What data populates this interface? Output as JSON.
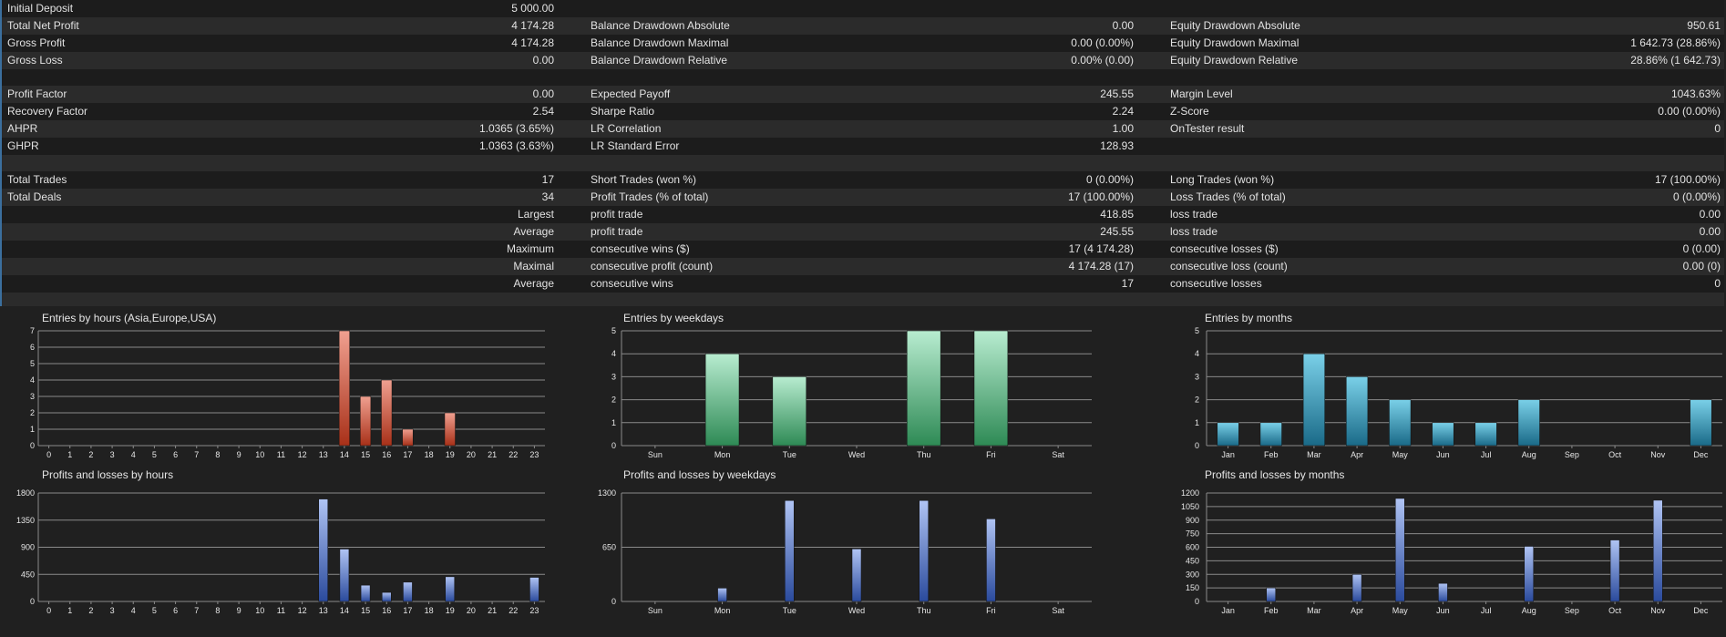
{
  "stats_rows": [
    {
      "a_label": "Initial Deposit",
      "a_value": "5 000.00",
      "b_label": "",
      "b_value": "",
      "c_label": "",
      "c_value": "",
      "a_right": false
    },
    {
      "a_label": "Total Net Profit",
      "a_value": "4 174.28",
      "b_label": "Balance Drawdown Absolute",
      "b_value": "0.00",
      "c_label": "Equity Drawdown Absolute",
      "c_value": "950.61",
      "a_right": false
    },
    {
      "a_label": "Gross Profit",
      "a_value": "4 174.28",
      "b_label": "Balance Drawdown Maximal",
      "b_value": "0.00 (0.00%)",
      "c_label": "Equity Drawdown Maximal",
      "c_value": "1 642.73 (28.86%)",
      "a_right": false
    },
    {
      "a_label": "Gross Loss",
      "a_value": "0.00",
      "b_label": "Balance Drawdown Relative",
      "b_value": "0.00% (0.00)",
      "c_label": "Equity Drawdown Relative",
      "c_value": "28.86% (1 642.73)",
      "a_right": false
    },
    {
      "blank": true
    },
    {
      "a_label": "Profit Factor",
      "a_value": "0.00",
      "b_label": "Expected Payoff",
      "b_value": "245.55",
      "c_label": "Margin Level",
      "c_value": "1043.63%",
      "a_right": false
    },
    {
      "a_label": "Recovery Factor",
      "a_value": "2.54",
      "b_label": "Sharpe Ratio",
      "b_value": "2.24",
      "c_label": "Z-Score",
      "c_value": "0.00 (0.00%)",
      "a_right": false
    },
    {
      "a_label": "AHPR",
      "a_value": "1.0365 (3.65%)",
      "b_label": "LR Correlation",
      "b_value": "1.00",
      "c_label": "OnTester result",
      "c_value": "0",
      "a_right": false
    },
    {
      "a_label": "GHPR",
      "a_value": "1.0363 (3.63%)",
      "b_label": "LR Standard Error",
      "b_value": "128.93",
      "c_label": "",
      "c_value": "",
      "a_right": false
    },
    {
      "blank": true
    },
    {
      "a_label": "Total Trades",
      "a_value": "17",
      "b_label": "Short Trades (won %)",
      "b_value": "0 (0.00%)",
      "c_label": "Long Trades (won %)",
      "c_value": "17 (100.00%)",
      "a_right": false
    },
    {
      "a_label": "Total Deals",
      "a_value": "34",
      "b_label": "Profit Trades (% of total)",
      "b_value": "17 (100.00%)",
      "c_label": "Loss Trades (% of total)",
      "c_value": "0 (0.00%)",
      "a_right": false
    },
    {
      "a_label": "Largest",
      "a_value": "",
      "b_label": "profit trade",
      "b_value": "418.85",
      "c_label": "loss trade",
      "c_value": "0.00",
      "a_right": true
    },
    {
      "a_label": "Average",
      "a_value": "",
      "b_label": "profit trade",
      "b_value": "245.55",
      "c_label": "loss trade",
      "c_value": "0.00",
      "a_right": true
    },
    {
      "a_label": "Maximum",
      "a_value": "",
      "b_label": "consecutive wins ($)",
      "b_value": "17 (4 174.28)",
      "c_label": "consecutive losses ($)",
      "c_value": "0 (0.00)",
      "a_right": true
    },
    {
      "a_label": "Maximal",
      "a_value": "",
      "b_label": "consecutive profit (count)",
      "b_value": "4 174.28 (17)",
      "c_label": "consecutive loss (count)",
      "c_value": "0.00 (0)",
      "a_right": true
    },
    {
      "a_label": "Average",
      "a_value": "",
      "b_label": "consecutive wins",
      "b_value": "17",
      "c_label": "consecutive losses",
      "c_value": "0",
      "a_right": true
    },
    {
      "blank": true
    }
  ],
  "colors": {
    "background": "#202020",
    "grid": "#8a8a8a",
    "hours_bar_top": "#f0a090",
    "hours_bar_bottom": "#a83018",
    "weekday_bar_top": "#b8ecd0",
    "weekday_bar_bottom": "#2e8a55",
    "month_bar_top": "#7ad0e8",
    "month_bar_bottom": "#1a6a88",
    "pl_bar_top": "#b0c4f4",
    "pl_bar_bottom": "#2a4a9c"
  },
  "chart_data": [
    {
      "id": "entries-hours",
      "type": "bar",
      "title": "Entries by hours (Asia,Europe,USA)",
      "categories": [
        "0",
        "1",
        "2",
        "3",
        "4",
        "5",
        "6",
        "7",
        "8",
        "9",
        "10",
        "11",
        "12",
        "13",
        "14",
        "15",
        "16",
        "17",
        "18",
        "19",
        "20",
        "21",
        "22",
        "23"
      ],
      "values": [
        0,
        0,
        0,
        0,
        0,
        0,
        0,
        0,
        0,
        0,
        0,
        0,
        0,
        0,
        7,
        3,
        4,
        1,
        0,
        2,
        0,
        0,
        0,
        0
      ],
      "ylim": [
        0,
        7
      ],
      "yticks": [
        "0",
        "1",
        "2",
        "3",
        "4",
        "5",
        "6",
        "7"
      ],
      "color": "hours"
    },
    {
      "id": "entries-weekdays",
      "type": "bar",
      "title": "Entries by weekdays",
      "categories": [
        "Sun",
        "Mon",
        "Tue",
        "Wed",
        "Thu",
        "Fri",
        "Sat"
      ],
      "values": [
        0,
        4,
        3,
        0,
        5,
        5,
        0
      ],
      "ylim": [
        0,
        5
      ],
      "yticks": [
        "0",
        "1",
        "2",
        "3",
        "4",
        "5"
      ],
      "color": "weekday"
    },
    {
      "id": "entries-months",
      "type": "bar",
      "title": "Entries by months",
      "categories": [
        "Jan",
        "Feb",
        "Mar",
        "Apr",
        "May",
        "Jun",
        "Jul",
        "Aug",
        "Sep",
        "Oct",
        "Nov",
        "Dec"
      ],
      "values": [
        1,
        1,
        4,
        3,
        2,
        1,
        1,
        2,
        0,
        0,
        0,
        2
      ],
      "ylim": [
        0,
        5
      ],
      "yticks": [
        "0",
        "1",
        "2",
        "3",
        "4",
        "5"
      ],
      "color": "month"
    },
    {
      "id": "pl-hours",
      "type": "bar",
      "title": "Profits and losses by hours",
      "categories": [
        "0",
        "1",
        "2",
        "3",
        "4",
        "5",
        "6",
        "7",
        "8",
        "9",
        "10",
        "11",
        "12",
        "13",
        "14",
        "15",
        "16",
        "17",
        "18",
        "19",
        "20",
        "21",
        "22",
        "23"
      ],
      "values": [
        0,
        0,
        0,
        0,
        0,
        0,
        0,
        0,
        0,
        0,
        0,
        0,
        0,
        1700,
        870,
        270,
        150,
        320,
        0,
        410,
        0,
        0,
        0,
        400
      ],
      "ylim": [
        0,
        1800
      ],
      "yticks": [
        "0",
        "450",
        "900",
        "1350",
        "1800"
      ],
      "color": "pl"
    },
    {
      "id": "pl-weekdays",
      "type": "bar",
      "title": "Profits and losses by weekdays",
      "categories": [
        "Sun",
        "Mon",
        "Tue",
        "Wed",
        "Thu",
        "Fri",
        "Sat"
      ],
      "values": [
        0,
        160,
        1210,
        630,
        1210,
        990,
        0
      ],
      "ylim": [
        0,
        1300
      ],
      "yticks": [
        "0",
        "650",
        "1300"
      ],
      "color": "pl"
    },
    {
      "id": "pl-months",
      "type": "bar",
      "title": "Profits and losses by months",
      "categories": [
        "Jan",
        "Feb",
        "Mar",
        "Apr",
        "May",
        "Jun",
        "Jul",
        "Aug",
        "Sep",
        "Oct",
        "Nov",
        "Dec"
      ],
      "values": [
        0,
        150,
        0,
        300,
        1140,
        200,
        0,
        610,
        0,
        680,
        1120,
        0
      ],
      "ylim": [
        0,
        1200
      ],
      "yticks": [
        "0",
        "150",
        "300",
        "450",
        "600",
        "750",
        "900",
        "1050",
        "1200"
      ],
      "color": "pl"
    }
  ]
}
